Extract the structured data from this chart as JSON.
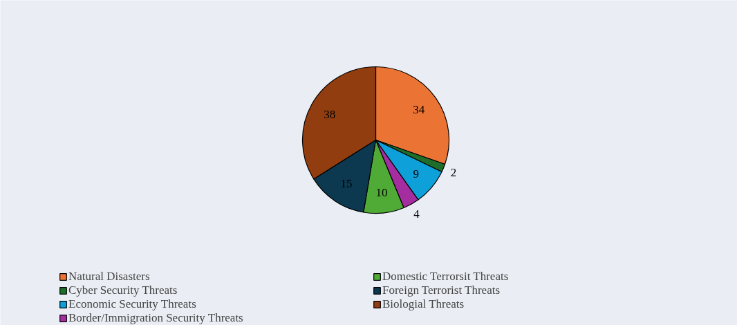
{
  "chart_data": {
    "type": "pie",
    "categories": [
      "Natural Disasters",
      "Cyber Security Threats",
      "Economic Security Threats",
      "Border/Immigration Security Threats",
      "Domestic Terrorsit Threats",
      "Foreign Terrorist Threats",
      "Biologial Threats"
    ],
    "values": [
      34,
      2,
      9,
      4,
      10,
      15,
      38
    ],
    "colors": [
      "#eb7434",
      "#1e6e2a",
      "#0ea0d8",
      "#a42ea0",
      "#4fab36",
      "#0c3850",
      "#913d0f"
    ],
    "data_labels": true,
    "legend": "bottom"
  }
}
